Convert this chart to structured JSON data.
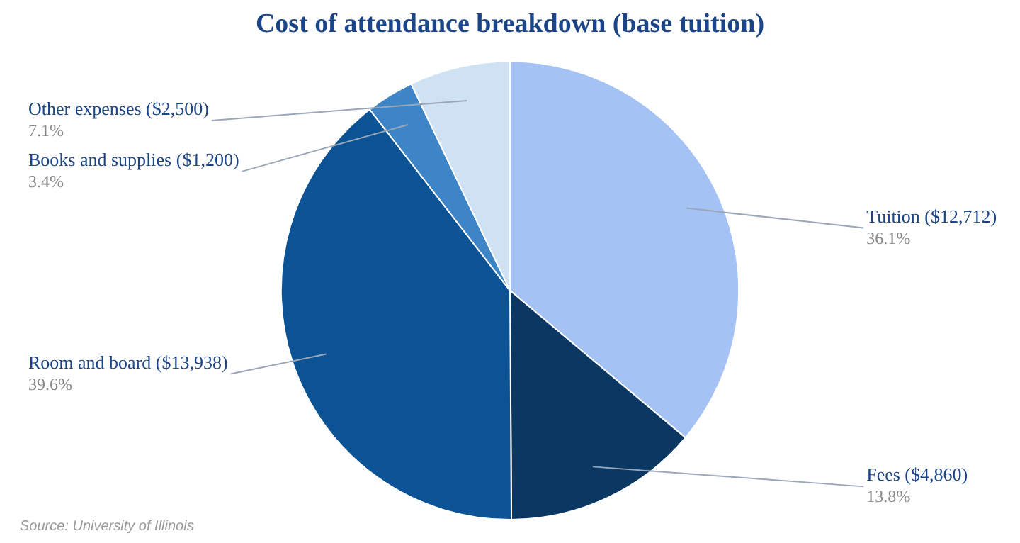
{
  "chart_data": {
    "type": "pie",
    "title": "Cost of attendance breakdown (base tuition)",
    "categories": [
      "Tuition ($12,712)",
      "Fees ($4,860)",
      "Room and board ($13,938)",
      "Books and supplies ($1,200)",
      "Other expenses ($2,500)"
    ],
    "values": [
      36.1,
      13.8,
      39.6,
      3.4,
      7.1
    ],
    "value_labels": [
      "36.1%",
      "13.8%",
      "39.6%",
      "3.4%",
      "7.1%"
    ],
    "colors": [
      "#a4c2f4",
      "#0b3763",
      "#0b5394",
      "#3d85c6",
      "#cfe2f3"
    ],
    "legend": false,
    "annotations": [
      "Source: University of Illinois"
    ]
  }
}
